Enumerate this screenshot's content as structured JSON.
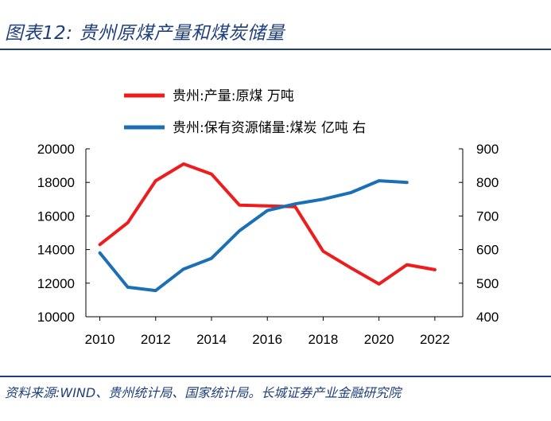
{
  "header": {
    "title": "图表12:  贵州原煤产量和煤炭储量"
  },
  "footer": {
    "source": "资料来源:WIND、贵州统计局、国家统计局。长城证券产业金融研究院"
  },
  "colors": {
    "production": "#ee1c1c",
    "reserves": "#1a6fb5",
    "rule": "#1f3f7a"
  },
  "chart_data": {
    "type": "line",
    "title": "贵州原煤产量和煤炭储量",
    "xlabel": "",
    "ylabel": "",
    "xlim": [
      2009.5,
      2023.0
    ],
    "x_ticks": [
      2010,
      2012,
      2014,
      2016,
      2018,
      2020,
      2022
    ],
    "x_tick_labels": [
      "2010",
      "2012",
      "2014",
      "2016",
      "2018",
      "2020",
      "2022"
    ],
    "y_left": {
      "ylim": [
        10000,
        20000
      ],
      "ticks": [
        "10000",
        "12000",
        "14000",
        "16000",
        "18000",
        "20000"
      ]
    },
    "y_right": {
      "ylim": [
        400,
        900
      ],
      "ticks": [
        "400",
        "500",
        "600",
        "700",
        "800",
        "900"
      ]
    },
    "series": [
      {
        "name": "贵州:产量:原煤 万吨",
        "axis": "left",
        "color": "#ee1c1c",
        "x": [
          2010,
          2011,
          2012,
          2013,
          2014,
          2015,
          2016,
          2017,
          2018,
          2019,
          2020,
          2021,
          2022
        ],
        "values": [
          14300,
          15600,
          18100,
          19100,
          18500,
          16650,
          16600,
          16550,
          13900,
          12900,
          11950,
          13100,
          12800
        ]
      },
      {
        "name": "贵州:保有资源储量:煤炭 亿吨 右",
        "axis": "right",
        "color": "#1a6fb5",
        "x": [
          2010,
          2011,
          2012,
          2013,
          2014,
          2015,
          2016,
          2017,
          2018,
          2019,
          2020,
          2021
        ],
        "values": [
          590,
          488,
          478,
          542,
          574,
          656,
          716,
          736,
          750,
          770,
          805,
          800
        ]
      }
    ],
    "legend": "top-center",
    "grid": false
  }
}
